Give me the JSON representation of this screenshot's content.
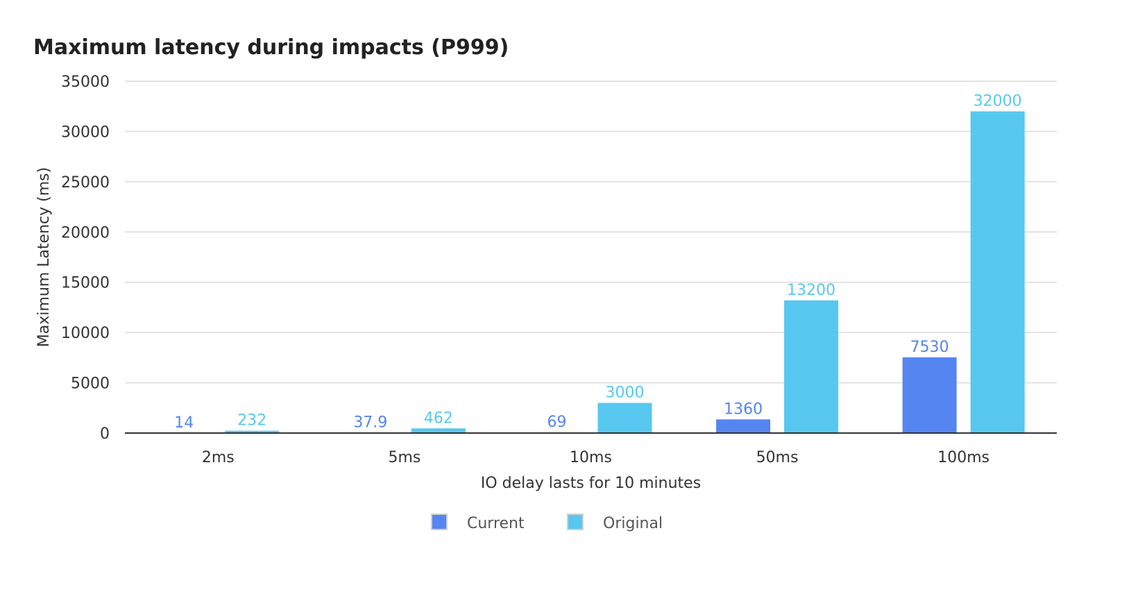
{
  "chart_data": {
    "type": "bar",
    "title": "Maximum latency during impacts (P999)",
    "xlabel": "IO delay lasts for 10 minutes",
    "ylabel": "Maximum Latency (ms)",
    "categories": [
      "2ms",
      "5ms",
      "10ms",
      "50ms",
      "100ms"
    ],
    "series": [
      {
        "name": "Current",
        "color": "#5585f0",
        "values": [
          14,
          37.9,
          69,
          1360,
          7530
        ],
        "labels": [
          "14",
          "37.9",
          "69",
          "1360",
          "7530"
        ]
      },
      {
        "name": "Original",
        "color": "#56c8f0",
        "values": [
          232,
          462,
          3000,
          13200,
          32000
        ],
        "labels": [
          "232",
          "462",
          "3000",
          "13200",
          "32000"
        ]
      }
    ],
    "ylim": [
      0,
      35000
    ],
    "yticks": [
      "0",
      "5000",
      "10000",
      "15000",
      "20000",
      "25000",
      "30000",
      "35000"
    ],
    "ytick_values": [
      0,
      5000,
      10000,
      15000,
      20000,
      25000,
      30000,
      35000
    ],
    "grid": true,
    "legend_position": "bottom-center"
  }
}
